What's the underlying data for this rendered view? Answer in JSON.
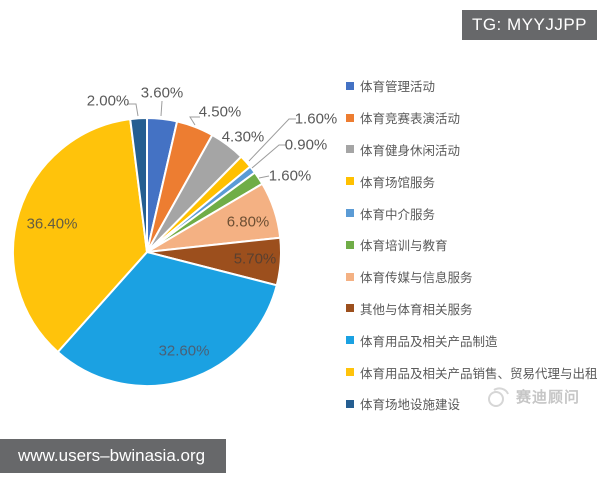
{
  "header": {
    "badge": "TG: MYYJJPP"
  },
  "footer": {
    "url": "www.users–bwinasia.org"
  },
  "watermark": {
    "text": "赛迪顾问"
  },
  "chart_data": {
    "type": "pie",
    "title": "",
    "legend_position": "right",
    "start_angle_deg": 0,
    "direction": "clockwise",
    "total": 100,
    "slices": [
      {
        "label": "体育管理活动",
        "value": 3.6,
        "display": "3.60%",
        "color": "#4472C4"
      },
      {
        "label": "体育竞赛表演活动",
        "value": 4.5,
        "display": "4.50%",
        "color": "#ED7D31"
      },
      {
        "label": "体育健身休闲活动",
        "value": 4.3,
        "display": "4.30%",
        "color": "#A5A5A5"
      },
      {
        "label": "体育场馆服务",
        "value": 1.6,
        "display": "1.60%",
        "color": "#FFC000"
      },
      {
        "label": "体育中介服务",
        "value": 0.9,
        "display": "0.90%",
        "color": "#5B9BD5"
      },
      {
        "label": "体育培训与教育",
        "value": 1.6,
        "display": "1.60%",
        "color": "#70AD47"
      },
      {
        "label": "体育传媒与信息服务",
        "value": 6.8,
        "display": "6.80%",
        "color": "#F4B183"
      },
      {
        "label": "其他与体育相关服务",
        "value": 5.7,
        "display": "5.70%",
        "color": "#9C4F1D"
      },
      {
        "label": "体育用品及相关产品制造",
        "value": 32.6,
        "display": "32.60%",
        "color": "#1BA1E2"
      },
      {
        "label": "体育用品及相关产品销售、贸易代理与出租",
        "value": 36.4,
        "display": "36.40%",
        "color": "#FFC30B"
      },
      {
        "label": "体育场地设施建设",
        "value": 2.0,
        "display": "2.00%",
        "color": "#255E91"
      }
    ]
  }
}
